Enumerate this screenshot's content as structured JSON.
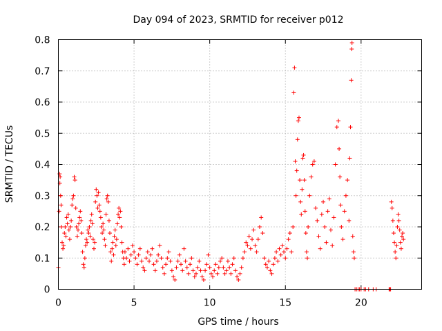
{
  "chart_data": {
    "type": "scatter",
    "title": "Day 094 of 2023, SRMTID for receiver p012",
    "xlabel": "GPS time / hours",
    "ylabel": "SRMTID / TECUs",
    "xlim": [
      0,
      24
    ],
    "ylim": [
      0,
      0.8
    ],
    "x_ticks": [
      0,
      5,
      10,
      15,
      20
    ],
    "x_tick_labels": [
      "0",
      "5",
      "10",
      "15",
      "20"
    ],
    "y_ticks": [
      0,
      0.1,
      0.2,
      0.3,
      0.4,
      0.5,
      0.6,
      0.7,
      0.8
    ],
    "y_tick_labels": [
      "0",
      "0.1",
      "0.2",
      "0.3",
      "0.4",
      "0.5",
      "0.6",
      "0.7",
      "0.8"
    ],
    "grid": true,
    "marker": "+",
    "color": "#ff0000",
    "series": [
      {
        "name": "SRMTID",
        "points": [
          [
            0.0,
            0.07
          ],
          [
            0.05,
            0.25
          ],
          [
            0.08,
            0.37
          ],
          [
            0.1,
            0.34
          ],
          [
            0.12,
            0.36
          ],
          [
            0.15,
            0.3
          ],
          [
            0.18,
            0.27
          ],
          [
            0.2,
            0.2
          ],
          [
            0.25,
            0.15
          ],
          [
            0.3,
            0.13
          ],
          [
            0.35,
            0.14
          ],
          [
            0.4,
            0.18
          ],
          [
            0.45,
            0.2
          ],
          [
            0.5,
            0.17
          ],
          [
            0.55,
            0.23
          ],
          [
            0.6,
            0.21
          ],
          [
            0.65,
            0.24
          ],
          [
            0.7,
            0.19
          ],
          [
            0.75,
            0.16
          ],
          [
            0.8,
            0.2
          ],
          [
            0.85,
            0.22
          ],
          [
            0.9,
            0.27
          ],
          [
            0.95,
            0.29
          ],
          [
            1.0,
            0.3
          ],
          [
            1.05,
            0.36
          ],
          [
            1.1,
            0.35
          ],
          [
            1.15,
            0.26
          ],
          [
            1.2,
            0.2
          ],
          [
            1.25,
            0.17
          ],
          [
            1.3,
            0.19
          ],
          [
            1.35,
            0.21
          ],
          [
            1.4,
            0.23
          ],
          [
            1.45,
            0.25
          ],
          [
            1.5,
            0.22
          ],
          [
            1.55,
            0.18
          ],
          [
            1.6,
            0.12
          ],
          [
            1.65,
            0.08
          ],
          [
            1.7,
            0.07
          ],
          [
            1.75,
            0.1
          ],
          [
            1.8,
            0.14
          ],
          [
            1.85,
            0.16
          ],
          [
            1.9,
            0.15
          ],
          [
            1.95,
            0.19
          ],
          [
            2.0,
            0.18
          ],
          [
            2.05,
            0.2
          ],
          [
            2.1,
            0.17
          ],
          [
            2.15,
            0.22
          ],
          [
            2.2,
            0.24
          ],
          [
            2.25,
            0.21
          ],
          [
            2.3,
            0.16
          ],
          [
            2.35,
            0.13
          ],
          [
            2.4,
            0.15
          ],
          [
            2.45,
            0.28
          ],
          [
            2.5,
            0.32
          ],
          [
            2.55,
            0.3
          ],
          [
            2.6,
            0.26
          ],
          [
            2.65,
            0.31
          ],
          [
            2.7,
            0.27
          ],
          [
            2.75,
            0.25
          ],
          [
            2.8,
            0.23
          ],
          [
            2.85,
            0.2
          ],
          [
            2.9,
            0.18
          ],
          [
            2.95,
            0.21
          ],
          [
            3.0,
            0.19
          ],
          [
            3.05,
            0.16
          ],
          [
            3.1,
            0.14
          ],
          [
            3.15,
            0.24
          ],
          [
            3.2,
            0.29
          ],
          [
            3.25,
            0.3
          ],
          [
            3.3,
            0.28
          ],
          [
            3.35,
            0.22
          ],
          [
            3.4,
            0.18
          ],
          [
            3.45,
            0.12
          ],
          [
            3.5,
            0.09
          ],
          [
            3.55,
            0.13
          ],
          [
            3.6,
            0.15
          ],
          [
            3.65,
            0.11
          ],
          [
            3.7,
            0.17
          ],
          [
            3.75,
            0.19
          ],
          [
            3.8,
            0.14
          ],
          [
            3.85,
            0.16
          ],
          [
            3.9,
            0.21
          ],
          [
            3.95,
            0.24
          ],
          [
            4.0,
            0.26
          ],
          [
            4.05,
            0.23
          ],
          [
            4.1,
            0.25
          ],
          [
            4.15,
            0.2
          ],
          [
            4.2,
            0.15
          ],
          [
            4.25,
            0.12
          ],
          [
            4.3,
            0.1
          ],
          [
            4.35,
            0.08
          ],
          [
            4.4,
            0.12
          ],
          [
            4.5,
            0.1
          ],
          [
            4.6,
            0.13
          ],
          [
            4.7,
            0.09
          ],
          [
            4.8,
            0.11
          ],
          [
            4.9,
            0.14
          ],
          [
            5.0,
            0.12
          ],
          [
            5.1,
            0.1
          ],
          [
            5.2,
            0.08
          ],
          [
            5.3,
            0.11
          ],
          [
            5.4,
            0.13
          ],
          [
            5.5,
            0.09
          ],
          [
            5.6,
            0.07
          ],
          [
            5.7,
            0.06
          ],
          [
            5.8,
            0.1
          ],
          [
            5.9,
            0.12
          ],
          [
            6.0,
            0.09
          ],
          [
            6.1,
            0.11
          ],
          [
            6.2,
            0.13
          ],
          [
            6.3,
            0.08
          ],
          [
            6.4,
            0.06
          ],
          [
            6.5,
            0.09
          ],
          [
            6.6,
            0.11
          ],
          [
            6.7,
            0.14
          ],
          [
            6.8,
            0.1
          ],
          [
            6.9,
            0.07
          ],
          [
            7.0,
            0.05
          ],
          [
            7.1,
            0.08
          ],
          [
            7.2,
            0.1
          ],
          [
            7.3,
            0.12
          ],
          [
            7.4,
            0.09
          ],
          [
            7.5,
            0.06
          ],
          [
            7.6,
            0.04
          ],
          [
            7.7,
            0.03
          ],
          [
            7.8,
            0.07
          ],
          [
            7.9,
            0.09
          ],
          [
            8.0,
            0.11
          ],
          [
            8.1,
            0.08
          ],
          [
            8.2,
            0.06
          ],
          [
            8.3,
            0.13
          ],
          [
            8.4,
            0.09
          ],
          [
            8.5,
            0.07
          ],
          [
            8.6,
            0.05
          ],
          [
            8.7,
            0.08
          ],
          [
            8.8,
            0.1
          ],
          [
            8.9,
            0.06
          ],
          [
            9.0,
            0.04
          ],
          [
            9.1,
            0.05
          ],
          [
            9.2,
            0.07
          ],
          [
            9.3,
            0.09
          ],
          [
            9.4,
            0.06
          ],
          [
            9.5,
            0.04
          ],
          [
            9.6,
            0.03
          ],
          [
            9.7,
            0.06
          ],
          [
            9.8,
            0.08
          ],
          [
            9.9,
            0.11
          ],
          [
            10.0,
            0.07
          ],
          [
            10.1,
            0.05
          ],
          [
            10.2,
            0.04
          ],
          [
            10.3,
            0.06
          ],
          [
            10.4,
            0.08
          ],
          [
            10.5,
            0.05
          ],
          [
            10.6,
            0.07
          ],
          [
            10.7,
            0.09
          ],
          [
            10.8,
            0.1
          ],
          [
            10.9,
            0.07
          ],
          [
            11.0,
            0.05
          ],
          [
            11.1,
            0.06
          ],
          [
            11.2,
            0.09
          ],
          [
            11.3,
            0.07
          ],
          [
            11.4,
            0.05
          ],
          [
            11.5,
            0.08
          ],
          [
            11.6,
            0.1
          ],
          [
            11.7,
            0.06
          ],
          [
            11.8,
            0.04
          ],
          [
            11.9,
            0.03
          ],
          [
            12.0,
            0.05
          ],
          [
            12.1,
            0.07
          ],
          [
            12.2,
            0.1
          ],
          [
            12.3,
            0.12
          ],
          [
            12.4,
            0.15
          ],
          [
            12.5,
            0.14
          ],
          [
            12.6,
            0.17
          ],
          [
            12.7,
            0.13
          ],
          [
            12.8,
            0.16
          ],
          [
            12.9,
            0.19
          ],
          [
            13.0,
            0.14
          ],
          [
            13.1,
            0.12
          ],
          [
            13.2,
            0.16
          ],
          [
            13.3,
            0.2
          ],
          [
            13.4,
            0.23
          ],
          [
            13.5,
            0.18
          ],
          [
            13.6,
            0.1
          ],
          [
            13.7,
            0.08
          ],
          [
            13.8,
            0.07
          ],
          [
            13.9,
            0.09
          ],
          [
            14.0,
            0.06
          ],
          [
            14.1,
            0.05
          ],
          [
            14.2,
            0.08
          ],
          [
            14.3,
            0.1
          ],
          [
            14.4,
            0.12
          ],
          [
            14.5,
            0.09
          ],
          [
            14.6,
            0.13
          ],
          [
            14.7,
            0.11
          ],
          [
            14.8,
            0.14
          ],
          [
            14.9,
            0.12
          ],
          [
            15.0,
            0.1
          ],
          [
            15.1,
            0.13
          ],
          [
            15.2,
            0.16
          ],
          [
            15.3,
            0.18
          ],
          [
            15.4,
            0.12
          ],
          [
            15.5,
            0.2
          ],
          [
            15.55,
            0.63
          ],
          [
            15.6,
            0.71
          ],
          [
            15.65,
            0.41
          ],
          [
            15.7,
            0.3
          ],
          [
            15.75,
            0.38
          ],
          [
            15.8,
            0.48
          ],
          [
            15.85,
            0.54
          ],
          [
            15.9,
            0.55
          ],
          [
            15.95,
            0.35
          ],
          [
            16.0,
            0.28
          ],
          [
            16.05,
            0.24
          ],
          [
            16.1,
            0.32
          ],
          [
            16.15,
            0.42
          ],
          [
            16.2,
            0.43
          ],
          [
            16.25,
            0.35
          ],
          [
            16.3,
            0.25
          ],
          [
            16.35,
            0.18
          ],
          [
            16.4,
            0.12
          ],
          [
            16.45,
            0.1
          ],
          [
            16.5,
            0.2
          ],
          [
            16.6,
            0.3
          ],
          [
            16.7,
            0.36
          ],
          [
            16.8,
            0.4
          ],
          [
            16.9,
            0.41
          ],
          [
            17.0,
            0.26
          ],
          [
            17.1,
            0.22
          ],
          [
            17.2,
            0.17
          ],
          [
            17.3,
            0.13
          ],
          [
            17.4,
            0.24
          ],
          [
            17.5,
            0.28
          ],
          [
            17.6,
            0.2
          ],
          [
            17.7,
            0.15
          ],
          [
            17.8,
            0.25
          ],
          [
            17.9,
            0.29
          ],
          [
            18.0,
            0.19
          ],
          [
            18.1,
            0.14
          ],
          [
            18.2,
            0.23
          ],
          [
            18.3,
            0.4
          ],
          [
            18.4,
            0.52
          ],
          [
            18.5,
            0.54
          ],
          [
            18.55,
            0.45
          ],
          [
            18.6,
            0.36
          ],
          [
            18.65,
            0.27
          ],
          [
            18.7,
            0.2
          ],
          [
            18.8,
            0.16
          ],
          [
            18.9,
            0.25
          ],
          [
            19.0,
            0.3
          ],
          [
            19.1,
            0.35
          ],
          [
            19.2,
            0.22
          ],
          [
            19.25,
            0.42
          ],
          [
            19.3,
            0.52
          ],
          [
            19.35,
            0.67
          ],
          [
            19.38,
            0.77
          ],
          [
            19.4,
            0.79
          ],
          [
            19.45,
            0.17
          ],
          [
            19.5,
            0.12
          ],
          [
            19.55,
            0.1
          ],
          [
            19.6,
            0.0
          ],
          [
            19.7,
            0.0
          ],
          [
            19.8,
            0.0
          ],
          [
            19.9,
            0.0
          ],
          [
            20.0,
            0.0
          ],
          [
            20.2,
            0.0
          ],
          [
            20.3,
            0.0
          ],
          [
            20.5,
            0.0
          ],
          [
            20.8,
            0.0
          ],
          [
            21.0,
            0.0
          ],
          [
            21.85,
            0.0
          ],
          [
            21.9,
            0.0
          ],
          [
            21.95,
            0.0
          ],
          [
            22.0,
            0.28
          ],
          [
            22.05,
            0.26
          ],
          [
            22.1,
            0.22
          ],
          [
            22.15,
            0.18
          ],
          [
            22.2,
            0.15
          ],
          [
            22.25,
            0.12
          ],
          [
            22.3,
            0.1
          ],
          [
            22.35,
            0.14
          ],
          [
            22.4,
            0.2
          ],
          [
            22.45,
            0.24
          ],
          [
            22.5,
            0.22
          ],
          [
            22.55,
            0.19
          ],
          [
            22.6,
            0.15
          ],
          [
            22.65,
            0.13
          ],
          [
            22.7,
            0.17
          ],
          [
            22.75,
            0.18
          ],
          [
            22.8,
            0.16
          ]
        ]
      }
    ]
  }
}
